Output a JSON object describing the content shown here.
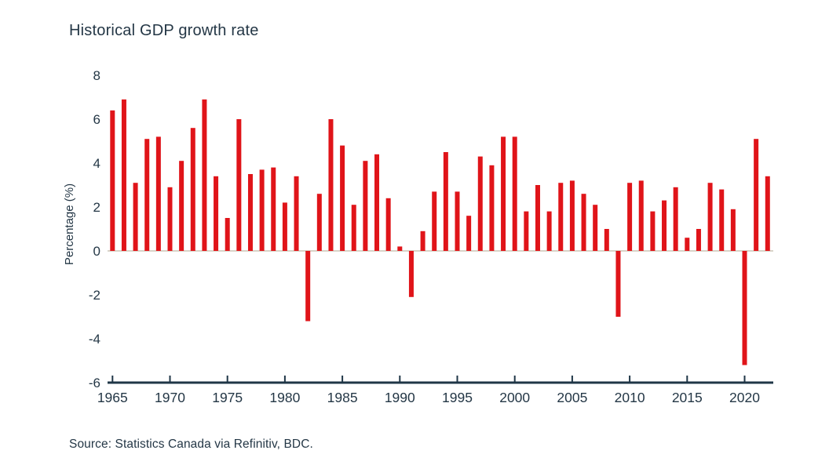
{
  "chart_data": {
    "type": "bar",
    "title": "Historical GDP growth rate",
    "xlabel": "",
    "ylabel": "Percentage (%)",
    "ylim": [
      -6,
      8
    ],
    "y_ticks": [
      8,
      6,
      4,
      2,
      0,
      -2,
      -4,
      -6
    ],
    "x_tick_years": [
      1965,
      1970,
      1975,
      1980,
      1985,
      1990,
      1995,
      2000,
      2005,
      2010,
      2015,
      2020
    ],
    "grid": "off",
    "legend_position": "none",
    "series_name": "GDP growth rate (%)",
    "years": [
      1965,
      1966,
      1967,
      1968,
      1969,
      1970,
      1971,
      1972,
      1973,
      1974,
      1975,
      1976,
      1977,
      1978,
      1979,
      1980,
      1981,
      1982,
      1983,
      1984,
      1985,
      1986,
      1987,
      1988,
      1989,
      1990,
      1991,
      1992,
      1993,
      1994,
      1995,
      1996,
      1997,
      1998,
      1999,
      2000,
      2001,
      2002,
      2003,
      2004,
      2005,
      2006,
      2007,
      2008,
      2009,
      2010,
      2011,
      2012,
      2013,
      2014,
      2015,
      2016,
      2017,
      2018,
      2019,
      2020,
      2021,
      2022
    ],
    "values": [
      6.4,
      6.9,
      3.1,
      5.1,
      5.2,
      2.9,
      4.1,
      5.6,
      6.9,
      3.4,
      1.5,
      6.0,
      3.5,
      3.7,
      3.8,
      2.2,
      3.4,
      -3.2,
      2.6,
      6.0,
      4.8,
      2.1,
      4.1,
      4.4,
      2.4,
      0.2,
      -2.1,
      0.9,
      2.7,
      4.5,
      2.7,
      1.6,
      4.3,
      3.9,
      5.2,
      5.2,
      1.8,
      3.0,
      1.8,
      3.1,
      3.2,
      2.6,
      2.1,
      1.0,
      -3.0,
      3.1,
      3.2,
      1.8,
      2.3,
      2.9,
      0.6,
      1.0,
      3.1,
      2.8,
      1.9,
      -5.2,
      5.1,
      3.4
    ],
    "colors": {
      "bar": "#e01419",
      "text": "#243746",
      "axis_line": "#1f3647",
      "zero_line": "#d8d3c8",
      "background": "#ffffff"
    }
  },
  "source": {
    "text": "Source: Statistics Canada via Refinitiv, BDC."
  }
}
